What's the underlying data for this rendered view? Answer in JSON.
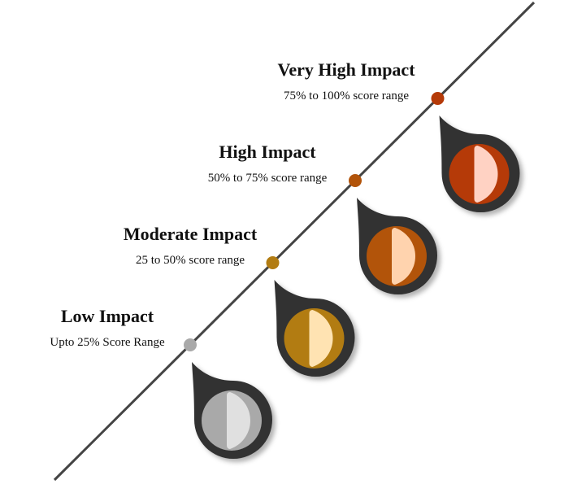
{
  "levels": [
    {
      "title": "Low Impact",
      "subtitle": "Upto 25% Score Range",
      "color": "#a9a9a9",
      "light": "#e0e0e0"
    },
    {
      "title": "Moderate Impact",
      "subtitle": "25 to 50% score range",
      "color": "#b27c12",
      "light": "#ffe3b2"
    },
    {
      "title": "High Impact",
      "subtitle": "50% to 75% score range",
      "color": "#b2540a",
      "light": "#ffd3ae"
    },
    {
      "title": "Very High Impact",
      "subtitle": "75% to 100% score range",
      "color": "#b53a08",
      "light": "#ffd2c3"
    }
  ]
}
